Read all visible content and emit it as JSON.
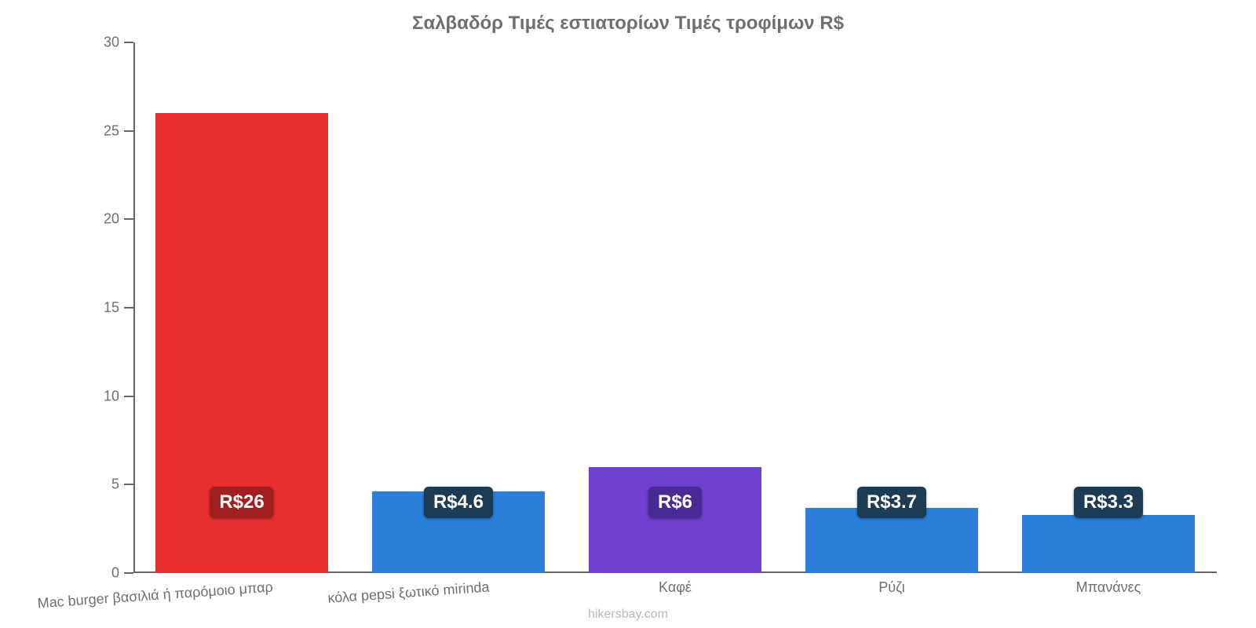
{
  "title": "Σαλβαδόρ Τιμές εστιατορίων Τιμές τροφίμων R$",
  "title_color": "#6f6f6f",
  "title_fontsize": 24,
  "attribution": "hikersbay.com",
  "attribution_color": "#b8b8b8",
  "chart": {
    "type": "bar",
    "background_color": "#ffffff",
    "axis_color": "#666666",
    "tick_label_color": "#6f6f6f",
    "tick_label_fontsize": 18,
    "category_label_fontsize": 18,
    "value_badge_fontsize": 24,
    "value_badge_text_color": "#ffffff",
    "ylim": [
      0,
      30
    ],
    "yticks": [
      0,
      5,
      10,
      15,
      20,
      25,
      30
    ],
    "bar_width_ratio": 0.8,
    "badge_y_value": 4.0,
    "categories": [
      {
        "label": "Mac burger βασιλιά ή παρόμοιο μπαρ",
        "value": 26,
        "value_label": "R$26",
        "bar_color": "#e72f2f",
        "badge_color": "#a21f1f",
        "label_tilt": true
      },
      {
        "label": "κόλα pepsi ξωτικό mirinda",
        "value": 4.6,
        "value_label": "R$4.6",
        "bar_color": "#2a7fd9",
        "badge_color": "#1c3b54",
        "label_tilt": true
      },
      {
        "label": "Καφέ",
        "value": 6,
        "value_label": "R$6",
        "bar_color": "#6f3fd1",
        "badge_color": "#4a2a94",
        "label_tilt": false
      },
      {
        "label": "Ρύζι",
        "value": 3.7,
        "value_label": "R$3.7",
        "bar_color": "#2a7fd9",
        "badge_color": "#1c3b54",
        "label_tilt": false
      },
      {
        "label": "Μπανάνες",
        "value": 3.3,
        "value_label": "R$3.3",
        "bar_color": "#2a7fd9",
        "badge_color": "#1c3b54",
        "label_tilt": false
      }
    ]
  }
}
